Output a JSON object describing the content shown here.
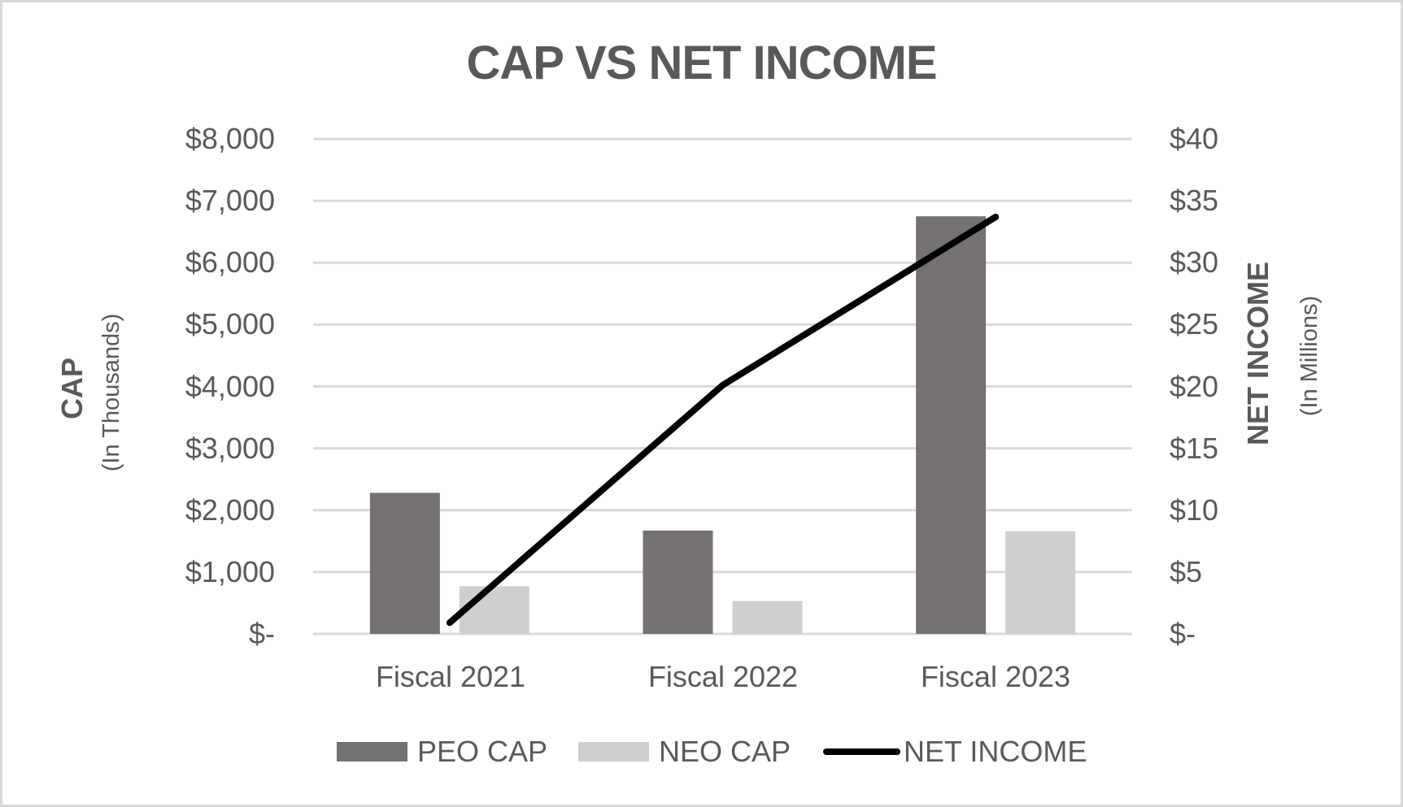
{
  "chart_data": {
    "type": "bar",
    "title": "CAP VS NET INCOME",
    "categories": [
      "Fiscal 2021",
      "Fiscal 2022",
      "Fiscal 2023"
    ],
    "series": [
      {
        "name": "PEO CAP",
        "type": "bar",
        "axis": "left",
        "color": "#767171",
        "values": [
          2280,
          1670,
          6750
        ]
      },
      {
        "name": "NEO CAP",
        "type": "bar",
        "axis": "left",
        "color": "#d0cece",
        "values": [
          770,
          530,
          1660
        ]
      },
      {
        "name": "NET INCOME",
        "type": "line",
        "axis": "right",
        "color": "#000000",
        "values": [
          0.9,
          20.1,
          33.7
        ]
      }
    ],
    "ylabel": "CAP",
    "ylabel_sub": "(In Thousands)",
    "y2label": "NET INCOME",
    "y2label_sub": "(In Millions)",
    "ylim": [
      0,
      8000
    ],
    "y2lim": [
      0,
      40
    ],
    "yticks": [
      "$-",
      "$1,000",
      "$2,000",
      "$3,000",
      "$4,000",
      "$5,000",
      "$6,000",
      "$7,000",
      "$8,000"
    ],
    "y2ticks": [
      "$-",
      "$5",
      "$10",
      "$15",
      "$20",
      "$25",
      "$30",
      "$35",
      "$40"
    ],
    "grid": true,
    "legend_position": "bottom"
  },
  "legend": {
    "peo": "PEO CAP",
    "neo": "NEO CAP",
    "net": "NET INCOME"
  }
}
